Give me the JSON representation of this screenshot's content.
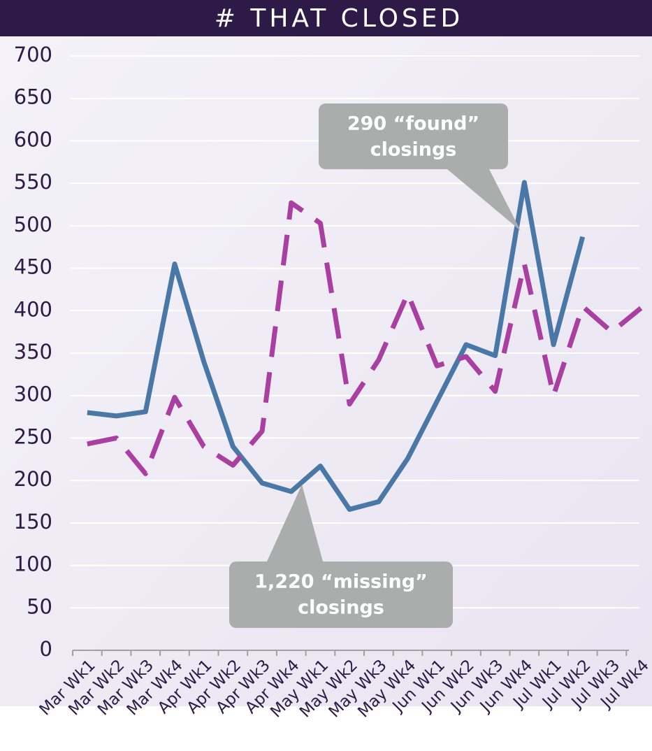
{
  "chart_data": {
    "type": "line",
    "title": "# THAT CLOSED",
    "categories": [
      "Mar Wk1",
      "Mar Wk2",
      "Mar Wk3",
      "Mar Wk4",
      "Apr Wk1",
      "Apr Wk2",
      "Apr Wk3",
      "Apr Wk4",
      "May Wk1",
      "May Wk2",
      "May Wk3",
      "May Wk4",
      "Jun Wk1",
      "Jun Wk2",
      "Jun Wk3",
      "Jun Wk4",
      "Jul Wk1",
      "Jul Wk2",
      "Jul Wk3",
      "Jul Wk4"
    ],
    "series": [
      {
        "color": "#4a78a6",
        "dashed": false,
        "values": [
          280,
          276,
          281,
          455,
          340,
          240,
          197,
          187,
          217,
          166,
          175,
          226,
          293,
          360,
          347,
          551,
          360,
          487,
          null,
          null
        ]
      },
      {
        "color": "#a93fa0",
        "dashed": true,
        "values": [
          243,
          250,
          208,
          298,
          240,
          218,
          258,
          527,
          503,
          290,
          342,
          420,
          335,
          346,
          305,
          455,
          300,
          405,
          375,
          403
        ]
      }
    ],
    "ylim": [
      0,
      700
    ],
    "yticks": [
      0,
      50,
      100,
      150,
      200,
      250,
      300,
      350,
      400,
      450,
      500,
      550,
      600,
      650,
      700
    ],
    "grid": true,
    "annotations": [
      {
        "lines": [
          "290 “found”",
          "closings"
        ]
      },
      {
        "lines": [
          "1,220 “missing”",
          "closings"
        ]
      }
    ]
  }
}
